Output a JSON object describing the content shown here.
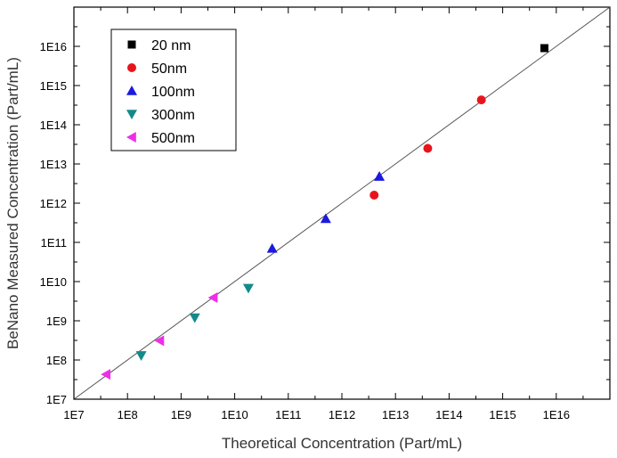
{
  "chart_data": {
    "type": "scatter",
    "title": "",
    "xlabel": "Theoretical Concentration (Part/mL)",
    "ylabel": "BeNano Measured Concentration (Part/mL)",
    "xscale": "log",
    "yscale": "log",
    "xlim": [
      10000000.0,
      1e+17
    ],
    "ylim": [
      10000000.0,
      1e+17
    ],
    "x_ticks": [
      "1E7",
      "1E8",
      "1E9",
      "1E10",
      "1E11",
      "1E12",
      "1E13",
      "1E14",
      "1E15",
      "1E16"
    ],
    "y_ticks": [
      "1E7",
      "1E8",
      "1E9",
      "1E10",
      "1E11",
      "1E12",
      "1E13",
      "1E14",
      "1E15",
      "1E16"
    ],
    "grid": false,
    "legend_position": "top-left",
    "reference_line": "y = x",
    "series": [
      {
        "name": "20 nm",
        "marker": "square",
        "color": "#000000",
        "points": [
          [
            6000000000000000.0,
            9000000000000000.0
          ]
        ]
      },
      {
        "name": "50nm",
        "marker": "circle",
        "color": "#e8141c",
        "points": [
          [
            4000000000000.0,
            1600000000000.0
          ],
          [
            40000000000000.0,
            25000000000000.0
          ],
          [
            400000000000000.0,
            430000000000000.0
          ]
        ]
      },
      {
        "name": "100nm",
        "marker": "triangle-up",
        "color": "#1a1ae0",
        "points": [
          [
            50000000000.0,
            70000000000.0
          ],
          [
            500000000000.0,
            400000000000.0
          ],
          [
            5000000000000.0,
            4800000000000.0
          ]
        ]
      },
      {
        "name": "300nm",
        "marker": "triangle-down",
        "color": "#138a8a",
        "points": [
          [
            180000000.0,
            130000000.0
          ],
          [
            1800000000.0,
            1200000000.0
          ],
          [
            18000000000.0,
            6800000000.0
          ]
        ]
      },
      {
        "name": "500nm",
        "marker": "triangle-left",
        "color": "#ee2ee8",
        "points": [
          [
            40000000.0,
            43000000.0
          ],
          [
            400000000.0,
            310000000.0
          ],
          [
            4000000000.0,
            3900000000.0
          ]
        ]
      }
    ]
  }
}
